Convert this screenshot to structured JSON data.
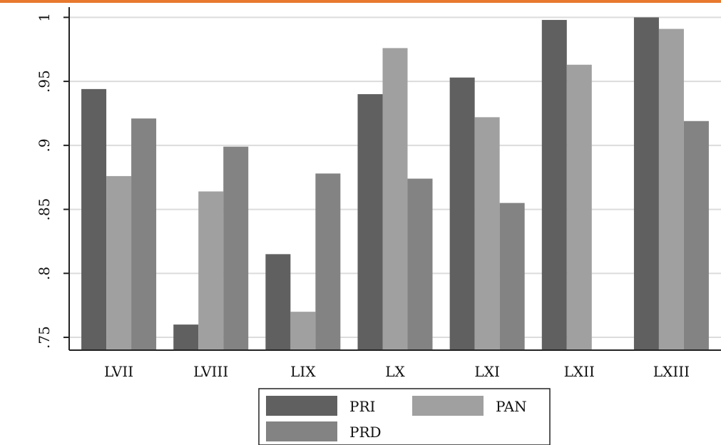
{
  "header": {
    "accent_color": "#e8792e"
  },
  "chart_data": {
    "type": "bar",
    "categories": [
      "LVII",
      "LVIII",
      "LIX",
      "LX",
      "LXI",
      "LXII",
      "LXIII"
    ],
    "series": [
      {
        "name": "PRI",
        "color": "#606060",
        "values": [
          0.944,
          0.76,
          0.815,
          0.94,
          0.953,
          0.998,
          1.0
        ]
      },
      {
        "name": "PAN",
        "color": "#a0a0a0",
        "values": [
          0.876,
          0.864,
          0.77,
          0.976,
          0.922,
          0.963,
          0.991
        ]
      },
      {
        "name": "PRD",
        "color": "#838383",
        "values": [
          0.921,
          0.899,
          0.878,
          0.874,
          0.855,
          null,
          0.919
        ]
      }
    ],
    "yticks": [
      ".75",
      ".8",
      ".85",
      ".9",
      ".95",
      "1"
    ],
    "ytick_values": [
      0.75,
      0.8,
      0.85,
      0.9,
      0.95,
      1.0
    ],
    "ylim": [
      0.74,
      1.008
    ],
    "grid": true,
    "legend": {
      "position": "bottom",
      "entries": [
        "PRI",
        "PAN",
        "PRD"
      ]
    }
  }
}
